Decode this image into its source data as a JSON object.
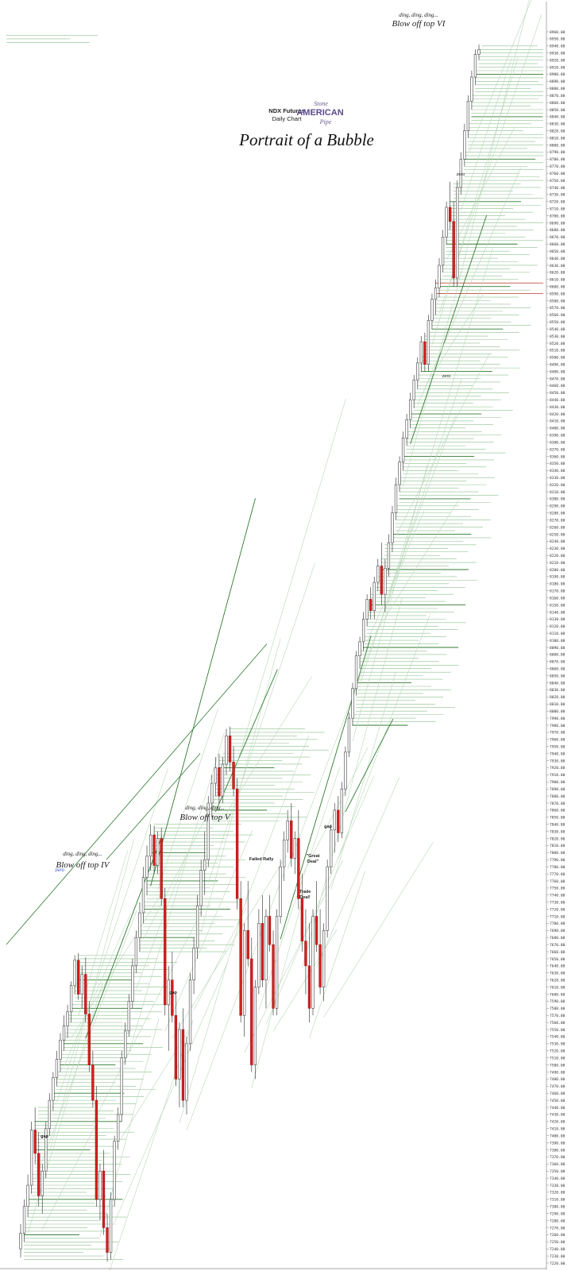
{
  "header": {
    "line1": "NDX Futures",
    "line2": "Daily Chart",
    "logo_top": "Stone",
    "logo_main": "AMERICAN",
    "logo_bottom": "Pipe",
    "headline": "Portrait of a Bubble"
  },
  "annotations": {
    "blow_iv": {
      "pre": "ding, ding, ding...",
      "main": "Blow off top IV"
    },
    "blow_v": {
      "pre": "ding, ding, ding...",
      "main": "Blow off top V"
    },
    "blow_vi": {
      "pre": "ding, ding, ding...",
      "main": "Blow off top VI"
    },
    "zero_left": "zero",
    "zero_top": "zero",
    "zero_mid": "zero",
    "gap1": "gap",
    "gap2": "gap",
    "gap3": "gap",
    "failed_rally": "Failed Rally",
    "great_deal": {
      "l1": "\"Great",
      "l2": "Deal\""
    },
    "trade_deal": {
      "l1": "Trade",
      "l2": "Deal!"
    }
  },
  "chart_data": {
    "type": "candlestick",
    "title": "Portrait of a Bubble",
    "y_axis": {
      "position": "right",
      "min": 7220,
      "max": 8960,
      "tick_step": 10,
      "label_every": 5
    },
    "grid": false,
    "horizontal_levels_green": [
      7260,
      7310,
      7380,
      7420,
      7460,
      7500,
      7530,
      7580,
      7620,
      7680,
      7720,
      7760,
      7800,
      7860,
      7920,
      7980,
      8040,
      8090,
      8150,
      8200,
      8250,
      8300,
      8360,
      8420,
      8480,
      8540,
      8600,
      8660,
      8720,
      8780,
      8840,
      8900
    ],
    "horizontal_levels_red": [
      8590,
      8605
    ],
    "candles": [
      {
        "o": 7240,
        "h": 7275,
        "l": 7228,
        "c": 7262
      },
      {
        "o": 7262,
        "h": 7310,
        "l": 7250,
        "c": 7300
      },
      {
        "o": 7300,
        "h": 7345,
        "l": 7285,
        "c": 7330
      },
      {
        "o": 7330,
        "h": 7420,
        "l": 7318,
        "c": 7408
      },
      {
        "o": 7408,
        "h": 7440,
        "l": 7360,
        "c": 7375
      },
      {
        "o": 7375,
        "h": 7405,
        "l": 7300,
        "c": 7315
      },
      {
        "o": 7315,
        "h": 7360,
        "l": 7290,
        "c": 7350
      },
      {
        "o": 7350,
        "h": 7420,
        "l": 7340,
        "c": 7410
      },
      {
        "o": 7410,
        "h": 7460,
        "l": 7400,
        "c": 7450
      },
      {
        "o": 7450,
        "h": 7490,
        "l": 7435,
        "c": 7482
      },
      {
        "o": 7482,
        "h": 7520,
        "l": 7470,
        "c": 7508
      },
      {
        "o": 7508,
        "h": 7545,
        "l": 7490,
        "c": 7535
      },
      {
        "o": 7535,
        "h": 7570,
        "l": 7520,
        "c": 7555
      },
      {
        "o": 7555,
        "h": 7585,
        "l": 7538,
        "c": 7575
      },
      {
        "o": 7575,
        "h": 7618,
        "l": 7560,
        "c": 7612
      },
      {
        "o": 7612,
        "h": 7655,
        "l": 7600,
        "c": 7648
      },
      {
        "o": 7648,
        "h": 7658,
        "l": 7592,
        "c": 7600
      },
      {
        "o": 7600,
        "h": 7640,
        "l": 7580,
        "c": 7628
      },
      {
        "o": 7628,
        "h": 7652,
        "l": 7560,
        "c": 7572
      },
      {
        "o": 7572,
        "h": 7590,
        "l": 7490,
        "c": 7500
      },
      {
        "o": 7500,
        "h": 7520,
        "l": 7440,
        "c": 7450
      },
      {
        "o": 7450,
        "h": 7470,
        "l": 7300,
        "c": 7310
      },
      {
        "o": 7310,
        "h": 7360,
        "l": 7280,
        "c": 7350
      },
      {
        "o": 7350,
        "h": 7380,
        "l": 7260,
        "c": 7270
      },
      {
        "o": 7270,
        "h": 7290,
        "l": 7222,
        "c": 7235
      },
      {
        "o": 7235,
        "h": 7320,
        "l": 7225,
        "c": 7310
      },
      {
        "o": 7310,
        "h": 7400,
        "l": 7300,
        "c": 7392
      },
      {
        "o": 7392,
        "h": 7440,
        "l": 7380,
        "c": 7430
      },
      {
        "o": 7430,
        "h": 7520,
        "l": 7420,
        "c": 7510
      },
      {
        "o": 7510,
        "h": 7560,
        "l": 7500,
        "c": 7548
      },
      {
        "o": 7548,
        "h": 7600,
        "l": 7540,
        "c": 7590
      },
      {
        "o": 7590,
        "h": 7650,
        "l": 7580,
        "c": 7640
      },
      {
        "o": 7640,
        "h": 7690,
        "l": 7630,
        "c": 7680
      },
      {
        "o": 7680,
        "h": 7730,
        "l": 7660,
        "c": 7715
      },
      {
        "o": 7715,
        "h": 7780,
        "l": 7700,
        "c": 7765
      },
      {
        "o": 7765,
        "h": 7810,
        "l": 7740,
        "c": 7795
      },
      {
        "o": 7795,
        "h": 7840,
        "l": 7775,
        "c": 7825
      },
      {
        "o": 7825,
        "h": 7838,
        "l": 7770,
        "c": 7782
      },
      {
        "o": 7782,
        "h": 7830,
        "l": 7770,
        "c": 7820
      },
      {
        "o": 7820,
        "h": 7835,
        "l": 7725,
        "c": 7735
      },
      {
        "o": 7735,
        "h": 7750,
        "l": 7570,
        "c": 7585
      },
      {
        "o": 7585,
        "h": 7640,
        "l": 7520,
        "c": 7620
      },
      {
        "o": 7620,
        "h": 7660,
        "l": 7560,
        "c": 7570
      },
      {
        "o": 7570,
        "h": 7600,
        "l": 7470,
        "c": 7480
      },
      {
        "o": 7480,
        "h": 7560,
        "l": 7440,
        "c": 7550
      },
      {
        "o": 7550,
        "h": 7580,
        "l": 7440,
        "c": 7450
      },
      {
        "o": 7450,
        "h": 7540,
        "l": 7430,
        "c": 7530
      },
      {
        "o": 7530,
        "h": 7630,
        "l": 7520,
        "c": 7620
      },
      {
        "o": 7620,
        "h": 7680,
        "l": 7600,
        "c": 7665
      },
      {
        "o": 7665,
        "h": 7740,
        "l": 7650,
        "c": 7725
      },
      {
        "o": 7725,
        "h": 7790,
        "l": 7710,
        "c": 7775
      },
      {
        "o": 7775,
        "h": 7830,
        "l": 7740,
        "c": 7790
      },
      {
        "o": 7790,
        "h": 7880,
        "l": 7780,
        "c": 7870
      },
      {
        "o": 7870,
        "h": 7910,
        "l": 7850,
        "c": 7898
      },
      {
        "o": 7898,
        "h": 7935,
        "l": 7880,
        "c": 7920
      },
      {
        "o": 7920,
        "h": 7940,
        "l": 7870,
        "c": 7880
      },
      {
        "o": 7880,
        "h": 7935,
        "l": 7870,
        "c": 7925
      },
      {
        "o": 7925,
        "h": 7975,
        "l": 7910,
        "c": 7965
      },
      {
        "o": 7965,
        "h": 7978,
        "l": 7915,
        "c": 7928
      },
      {
        "o": 7928,
        "h": 7950,
        "l": 7880,
        "c": 7890
      },
      {
        "o": 7890,
        "h": 7905,
        "l": 7720,
        "c": 7735
      },
      {
        "o": 7735,
        "h": 7760,
        "l": 7560,
        "c": 7570
      },
      {
        "o": 7570,
        "h": 7700,
        "l": 7540,
        "c": 7690
      },
      {
        "o": 7690,
        "h": 7760,
        "l": 7640,
        "c": 7650
      },
      {
        "o": 7650,
        "h": 7680,
        "l": 7490,
        "c": 7500
      },
      {
        "o": 7500,
        "h": 7620,
        "l": 7480,
        "c": 7610
      },
      {
        "o": 7610,
        "h": 7720,
        "l": 7600,
        "c": 7700
      },
      {
        "o": 7700,
        "h": 7740,
        "l": 7610,
        "c": 7620
      },
      {
        "o": 7620,
        "h": 7720,
        "l": 7580,
        "c": 7710
      },
      {
        "o": 7710,
        "h": 7740,
        "l": 7660,
        "c": 7670
      },
      {
        "o": 7670,
        "h": 7690,
        "l": 7570,
        "c": 7580
      },
      {
        "o": 7580,
        "h": 7720,
        "l": 7570,
        "c": 7710
      },
      {
        "o": 7710,
        "h": 7790,
        "l": 7700,
        "c": 7780
      },
      {
        "o": 7780,
        "h": 7830,
        "l": 7760,
        "c": 7818
      },
      {
        "o": 7818,
        "h": 7860,
        "l": 7800,
        "c": 7845
      },
      {
        "o": 7845,
        "h": 7870,
        "l": 7780,
        "c": 7792
      },
      {
        "o": 7792,
        "h": 7830,
        "l": 7770,
        "c": 7820
      },
      {
        "o": 7820,
        "h": 7860,
        "l": 7720,
        "c": 7735
      },
      {
        "o": 7735,
        "h": 7770,
        "l": 7660,
        "c": 7675
      },
      {
        "o": 7675,
        "h": 7720,
        "l": 7600,
        "c": 7640
      },
      {
        "o": 7640,
        "h": 7700,
        "l": 7560,
        "c": 7580
      },
      {
        "o": 7580,
        "h": 7720,
        "l": 7570,
        "c": 7710
      },
      {
        "o": 7710,
        "h": 7760,
        "l": 7660,
        "c": 7670
      },
      {
        "o": 7670,
        "h": 7720,
        "l": 7600,
        "c": 7610
      },
      {
        "o": 7610,
        "h": 7700,
        "l": 7590,
        "c": 7690
      },
      {
        "o": 7690,
        "h": 7790,
        "l": 7680,
        "c": 7780
      },
      {
        "o": 7780,
        "h": 7840,
        "l": 7770,
        "c": 7832
      },
      {
        "o": 7832,
        "h": 7870,
        "l": 7800,
        "c": 7860
      },
      {
        "o": 7860,
        "h": 7880,
        "l": 7815,
        "c": 7828
      },
      {
        "o": 7828,
        "h": 7900,
        "l": 7820,
        "c": 7890
      },
      {
        "o": 7890,
        "h": 7950,
        "l": 7880,
        "c": 7942
      },
      {
        "o": 7942,
        "h": 7998,
        "l": 7935,
        "c": 7990
      },
      {
        "o": 7990,
        "h": 8040,
        "l": 7980,
        "c": 8032
      },
      {
        "o": 8032,
        "h": 8085,
        "l": 8022,
        "c": 8078
      },
      {
        "o": 8078,
        "h": 8105,
        "l": 8060,
        "c": 8098
      },
      {
        "o": 8098,
        "h": 8140,
        "l": 8085,
        "c": 8130
      },
      {
        "o": 8130,
        "h": 8165,
        "l": 8120,
        "c": 8158
      },
      {
        "o": 8158,
        "h": 8175,
        "l": 8130,
        "c": 8142
      },
      {
        "o": 8142,
        "h": 8190,
        "l": 8130,
        "c": 8182
      },
      {
        "o": 8182,
        "h": 8215,
        "l": 8170,
        "c": 8205
      },
      {
        "o": 8205,
        "h": 8238,
        "l": 8150,
        "c": 8165
      },
      {
        "o": 8165,
        "h": 8215,
        "l": 8140,
        "c": 8202
      },
      {
        "o": 8202,
        "h": 8250,
        "l": 8190,
        "c": 8238
      },
      {
        "o": 8238,
        "h": 8290,
        "l": 8225,
        "c": 8280
      },
      {
        "o": 8280,
        "h": 8330,
        "l": 8270,
        "c": 8320
      },
      {
        "o": 8320,
        "h": 8360,
        "l": 8310,
        "c": 8352
      },
      {
        "o": 8352,
        "h": 8395,
        "l": 8340,
        "c": 8386
      },
      {
        "o": 8386,
        "h": 8420,
        "l": 8375,
        "c": 8412
      },
      {
        "o": 8412,
        "h": 8450,
        "l": 8400,
        "c": 8440
      },
      {
        "o": 8440,
        "h": 8475,
        "l": 8428,
        "c": 8468
      },
      {
        "o": 8468,
        "h": 8500,
        "l": 8455,
        "c": 8492
      },
      {
        "o": 8492,
        "h": 8530,
        "l": 8480,
        "c": 8522
      },
      {
        "o": 8522,
        "h": 8535,
        "l": 8480,
        "c": 8490
      },
      {
        "o": 8490,
        "h": 8560,
        "l": 8480,
        "c": 8552
      },
      {
        "o": 8552,
        "h": 8590,
        "l": 8540,
        "c": 8582
      },
      {
        "o": 8582,
        "h": 8610,
        "l": 8560,
        "c": 8598
      },
      {
        "o": 8598,
        "h": 8640,
        "l": 8585,
        "c": 8630
      },
      {
        "o": 8630,
        "h": 8680,
        "l": 8620,
        "c": 8670
      },
      {
        "o": 8670,
        "h": 8720,
        "l": 8660,
        "c": 8712
      },
      {
        "o": 8712,
        "h": 8748,
        "l": 8680,
        "c": 8692
      },
      {
        "o": 8692,
        "h": 8720,
        "l": 8600,
        "c": 8612
      },
      {
        "o": 8612,
        "h": 8750,
        "l": 8600,
        "c": 8740
      },
      {
        "o": 8740,
        "h": 8790,
        "l": 8730,
        "c": 8780
      },
      {
        "o": 8780,
        "h": 8830,
        "l": 8770,
        "c": 8820
      },
      {
        "o": 8820,
        "h": 8870,
        "l": 8810,
        "c": 8862
      },
      {
        "o": 8862,
        "h": 8905,
        "l": 8850,
        "c": 8896
      },
      {
        "o": 8896,
        "h": 8935,
        "l": 8885,
        "c": 8928
      },
      {
        "o": 8928,
        "h": 8942,
        "l": 8920,
        "c": 8935
      }
    ]
  }
}
